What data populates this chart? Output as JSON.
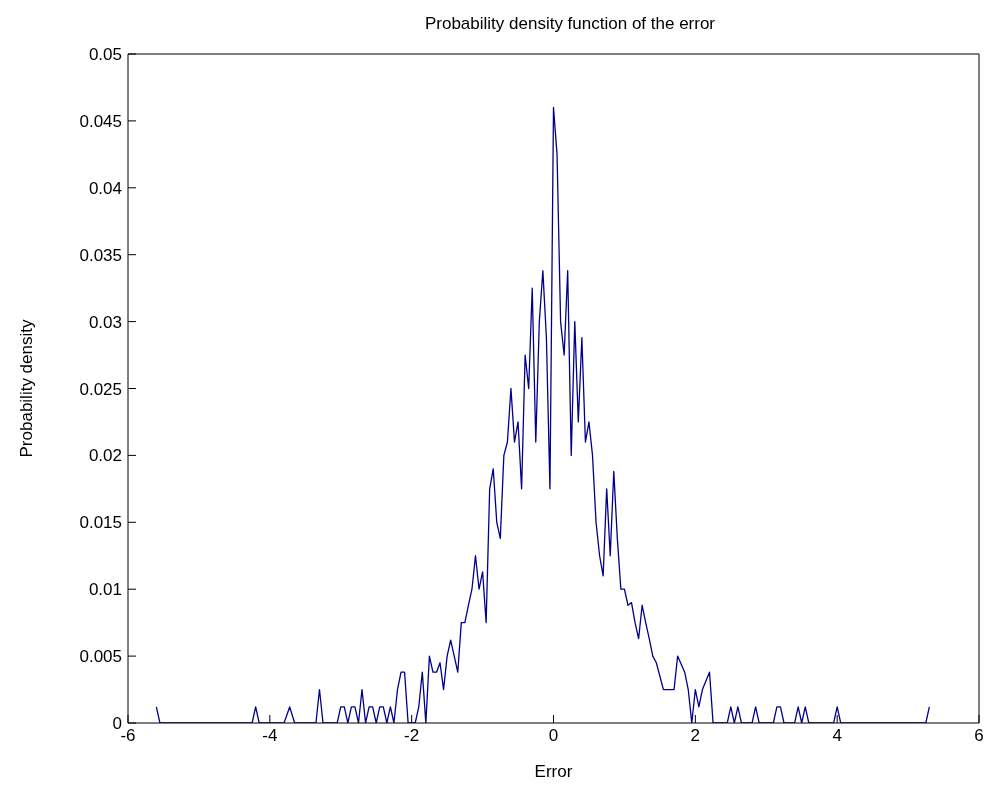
{
  "chart_data": {
    "type": "line",
    "title": "Probability density function of the error",
    "xlabel": "Error",
    "ylabel": "Probability density",
    "xlim": [
      -6,
      6
    ],
    "xticks": [
      -6,
      -4,
      -2,
      0,
      2,
      4,
      6
    ],
    "ylim": [
      0,
      0.05
    ],
    "yticks": [
      0,
      0.005,
      0.01,
      0.015,
      0.02,
      0.025,
      0.03,
      0.035,
      0.04,
      0.045,
      0.05
    ],
    "grid": false,
    "marker": "none",
    "line_style": "solid",
    "series": [
      {
        "color": "#00008b",
        "x": [
          -5.6,
          -5.55,
          -4.25,
          -4.2,
          -4.15,
          -3.8,
          -3.72,
          -3.65,
          -3.35,
          -3.3,
          -3.25,
          -3.05,
          -3.0,
          -2.95,
          -2.9,
          -2.85,
          -2.8,
          -2.75,
          -2.7,
          -2.65,
          -2.6,
          -2.55,
          -2.5,
          -2.45,
          -2.4,
          -2.35,
          -2.3,
          -2.25,
          -2.2,
          -2.15,
          -2.1,
          -2.05,
          -1.95,
          -1.9,
          -1.85,
          -1.8,
          -1.75,
          -1.7,
          -1.65,
          -1.6,
          -1.55,
          -1.5,
          -1.45,
          -1.4,
          -1.35,
          -1.3,
          -1.25,
          -1.2,
          -1.15,
          -1.1,
          -1.05,
          -1.0,
          -0.95,
          -0.9,
          -0.85,
          -0.8,
          -0.75,
          -0.7,
          -0.65,
          -0.6,
          -0.55,
          -0.5,
          -0.45,
          -0.4,
          -0.35,
          -0.3,
          -0.25,
          -0.2,
          -0.15,
          -0.1,
          -0.05,
          0,
          0.05,
          0.1,
          0.15,
          0.2,
          0.25,
          0.3,
          0.35,
          0.4,
          0.45,
          0.5,
          0.55,
          0.6,
          0.65,
          0.7,
          0.75,
          0.8,
          0.85,
          0.9,
          0.95,
          1.0,
          1.05,
          1.1,
          1.15,
          1.2,
          1.25,
          1.3,
          1.35,
          1.4,
          1.45,
          1.55,
          1.7,
          1.75,
          1.85,
          1.9,
          1.95,
          2.0,
          2.05,
          2.1,
          2.2,
          2.25,
          2.45,
          2.5,
          2.55,
          2.6,
          2.65,
          2.8,
          2.85,
          2.9,
          3.1,
          3.15,
          3.2,
          3.25,
          3.4,
          3.45,
          3.5,
          3.55,
          3.6,
          3.95,
          4.0,
          4.05,
          5.25,
          5.3
        ],
        "values": [
          0.0012,
          0,
          0,
          0.0012,
          0,
          0,
          0.0012,
          0,
          0,
          0.0025,
          0,
          0,
          0.0012,
          0.0012,
          0,
          0.0012,
          0.0012,
          0,
          0.0025,
          0,
          0.0012,
          0.0012,
          0,
          0.0012,
          0.0012,
          0,
          0.0012,
          0,
          0.0025,
          0.0038,
          0.0038,
          0,
          0,
          0.0012,
          0.0038,
          0,
          0.005,
          0.0038,
          0.0038,
          0.0045,
          0.0025,
          0.005,
          0.0062,
          0.005,
          0.0038,
          0.0075,
          0.0075,
          0.0088,
          0.01,
          0.0125,
          0.01,
          0.0113,
          0.0075,
          0.0175,
          0.019,
          0.015,
          0.0138,
          0.02,
          0.021,
          0.025,
          0.021,
          0.0225,
          0.0175,
          0.0275,
          0.025,
          0.0325,
          0.021,
          0.03,
          0.0338,
          0.0288,
          0.0175,
          0.046,
          0.0425,
          0.03,
          0.0275,
          0.0338,
          0.02,
          0.03,
          0.0225,
          0.0288,
          0.021,
          0.0225,
          0.02,
          0.015,
          0.0125,
          0.011,
          0.0175,
          0.0125,
          0.0188,
          0.0138,
          0.01,
          0.01,
          0.0088,
          0.009,
          0.0075,
          0.0063,
          0.0088,
          0.0075,
          0.0063,
          0.005,
          0.0045,
          0.0025,
          0.0025,
          0.005,
          0.0038,
          0.0025,
          0,
          0.0025,
          0.0012,
          0.0025,
          0.0038,
          0,
          0,
          0.0012,
          0,
          0.0012,
          0,
          0,
          0.0012,
          0,
          0,
          0.0012,
          0.0012,
          0,
          0,
          0.0012,
          0,
          0.0012,
          0,
          0,
          0.0012,
          0,
          0,
          0.0012
        ]
      }
    ]
  }
}
